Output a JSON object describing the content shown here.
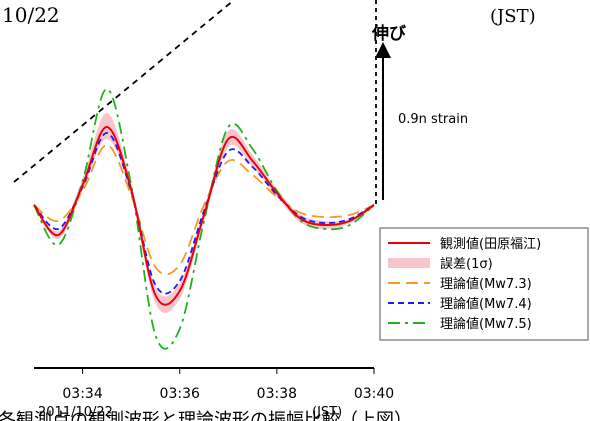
{
  "header": {
    "date_fragment": "10/22",
    "timezone": "(JST)"
  },
  "footer": {
    "caption_fragment": "各観測点の観測波形と理論波形の振幅比較（上図）"
  },
  "chart_data": {
    "type": "line",
    "xlim": [
      "03:33:00",
      "03:40:00"
    ],
    "x_ticks": [
      "03:34",
      "03:36",
      "03:38",
      "03:40"
    ],
    "x_date_label": "2011/10/22",
    "x_tz_label": "(JST)",
    "grid": false,
    "legend_position": "bottom-right",
    "series": [
      {
        "name": "観測値(田原福江)",
        "color": "#e8000b",
        "style": "solid",
        "x": [
          "03:33:00",
          "03:33:30",
          "03:34:00",
          "03:34:30",
          "03:35:00",
          "03:35:30",
          "03:36:00",
          "03:36:30",
          "03:37:00",
          "03:37:30",
          "03:38:00",
          "03:38:30",
          "03:39:00",
          "03:39:30",
          "03:40:00"
        ],
        "y": [
          0.0,
          -0.15,
          0.1,
          0.39,
          0.08,
          -0.45,
          -0.43,
          -0.05,
          0.33,
          0.22,
          0.06,
          -0.07,
          -0.1,
          -0.08,
          0.0
        ]
      },
      {
        "name": "誤差(1σ)",
        "color": "#f6c6cc",
        "style": "band",
        "x": [
          "03:33:00",
          "03:33:30",
          "03:34:00",
          "03:34:30",
          "03:35:00",
          "03:35:30",
          "03:36:00",
          "03:36:30",
          "03:37:00",
          "03:37:30",
          "03:38:00",
          "03:38:30",
          "03:39:00",
          "03:39:30",
          "03:40:00"
        ],
        "y_low": [
          -0.01,
          -0.17,
          0.07,
          0.33,
          0.05,
          -0.49,
          -0.47,
          -0.08,
          0.29,
          0.19,
          0.04,
          -0.09,
          -0.12,
          -0.09,
          -0.01
        ],
        "y_high": [
          0.01,
          -0.13,
          0.13,
          0.46,
          0.11,
          -0.41,
          -0.39,
          -0.02,
          0.37,
          0.25,
          0.08,
          -0.05,
          -0.08,
          -0.07,
          0.01
        ]
      },
      {
        "name": "理論値(Mw7.3)",
        "color": "#f49a2c",
        "style": "longdash",
        "x": [
          "03:33:00",
          "03:33:30",
          "03:34:00",
          "03:34:30",
          "03:35:00",
          "03:35:30",
          "03:36:00",
          "03:36:30",
          "03:37:00",
          "03:37:30",
          "03:38:00",
          "03:38:30",
          "03:39:00",
          "03:39:30",
          "03:40:00"
        ],
        "y": [
          0.0,
          -0.08,
          0.07,
          0.3,
          0.05,
          -0.31,
          -0.3,
          0.0,
          0.22,
          0.15,
          0.04,
          -0.04,
          -0.06,
          -0.05,
          0.0
        ]
      },
      {
        "name": "理論値(Mw7.4)",
        "color": "#1a1aff",
        "style": "dash",
        "x": [
          "03:33:00",
          "03:33:30",
          "03:34:00",
          "03:34:30",
          "03:35:00",
          "03:35:30",
          "03:36:00",
          "03:36:30",
          "03:37:00",
          "03:37:30",
          "03:38:00",
          "03:38:30",
          "03:39:00",
          "03:39:30",
          "03:40:00"
        ],
        "y": [
          0.0,
          -0.12,
          0.09,
          0.36,
          0.07,
          -0.4,
          -0.38,
          -0.03,
          0.27,
          0.19,
          0.05,
          -0.06,
          -0.09,
          -0.07,
          0.0
        ]
      },
      {
        "name": "理論値(Mw7.5)",
        "color": "#1fb31f",
        "style": "dashdot",
        "x": [
          "03:33:00",
          "03:33:30",
          "03:34:00",
          "03:34:30",
          "03:35:00",
          "03:35:30",
          "03:36:00",
          "03:36:30",
          "03:37:00",
          "03:37:30",
          "03:38:00",
          "03:38:30",
          "03:39:00",
          "03:39:30",
          "03:40:00"
        ],
        "y": [
          0.0,
          -0.2,
          0.12,
          0.58,
          0.1,
          -0.65,
          -0.62,
          -0.08,
          0.39,
          0.28,
          0.07,
          -0.08,
          -0.12,
          -0.1,
          0.0
        ]
      }
    ],
    "scale_bar": {
      "label": "伸び",
      "value_label": "0.9n strain"
    }
  }
}
